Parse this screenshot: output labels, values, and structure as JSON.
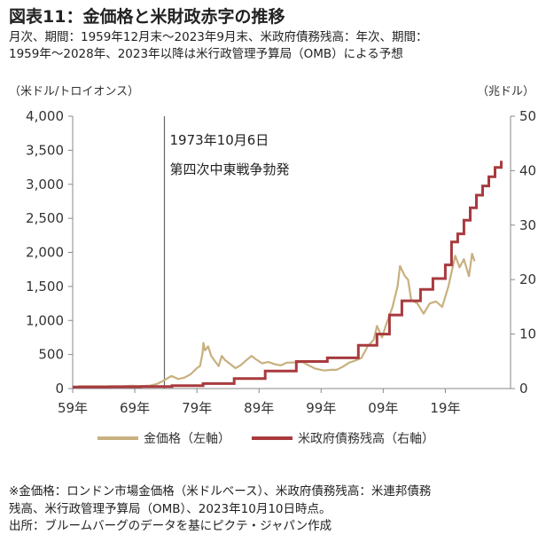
{
  "title": "図表11：金価格と米財政赤字の推移",
  "subtitle": [
    "月次、期間：1959年12月末～2023年9月末、米政府債務残高：年次、期間：",
    "1959年～2028年、2023年以降は米行政管理予算局（OMB）による予想"
  ],
  "left_unit": "（米ドル/トロイオンス）",
  "right_unit": "（兆ドル）",
  "annotation": [
    "1973年10月6日",
    "第四次中東戦争勃発"
  ],
  "footnote": [
    "※金価格：ロンドン市場金価格（米ドルベース）、米政府債務残高：米連邦債務",
    "残高、米行政管理予算局（OMB）、2023年10月10日時点。",
    "出所：ブルームバーグのデータを基にピクテ・ジャパン作成"
  ],
  "legend": {
    "gold": "金価格（左軸）",
    "debt": "米政府債務残高（右軸）"
  },
  "colors": {
    "gold": "#c8b07f",
    "debt": "#a83a3e",
    "axis": "#888888",
    "grid": "#cccccc"
  },
  "chart_data": {
    "type": "line",
    "x_ticks": [
      "59年",
      "69年",
      "79年",
      "89年",
      "99年",
      "09年",
      "19年"
    ],
    "x_tick_years": [
      1959,
      1969,
      1979,
      1989,
      1999,
      2009,
      2019
    ],
    "y_left": {
      "min": 0,
      "max": 4000,
      "ticks": [
        "0",
        "500",
        "1,000",
        "1,500",
        "2,000",
        "2,500",
        "3,000",
        "3,500",
        "4,000"
      ]
    },
    "y_right": {
      "min": 0,
      "max": 50,
      "ticks": [
        "0",
        "10",
        "20",
        "30",
        "40",
        "50"
      ]
    },
    "event_x": 1973.77,
    "series": [
      {
        "name": "金価格（左軸）",
        "axis": "left",
        "points": [
          [
            1959.9,
            35
          ],
          [
            1967.0,
            35
          ],
          [
            1968.5,
            40
          ],
          [
            1970.0,
            36
          ],
          [
            1971.5,
            43
          ],
          [
            1972.5,
            65
          ],
          [
            1973.5,
            110
          ],
          [
            1974.9,
            185
          ],
          [
            1976.0,
            140
          ],
          [
            1977.0,
            160
          ],
          [
            1978.0,
            210
          ],
          [
            1979.0,
            300
          ],
          [
            1979.5,
            330
          ],
          [
            1979.9,
            510
          ],
          [
            1980.05,
            670
          ],
          [
            1980.3,
            560
          ],
          [
            1980.8,
            620
          ],
          [
            1981.3,
            480
          ],
          [
            1982.0,
            390
          ],
          [
            1982.5,
            330
          ],
          [
            1983.0,
            480
          ],
          [
            1983.5,
            420
          ],
          [
            1984.5,
            350
          ],
          [
            1985.2,
            300
          ],
          [
            1986.0,
            340
          ],
          [
            1987.0,
            420
          ],
          [
            1987.8,
            480
          ],
          [
            1988.5,
            430
          ],
          [
            1989.5,
            370
          ],
          [
            1990.5,
            390
          ],
          [
            1991.5,
            360
          ],
          [
            1992.5,
            340
          ],
          [
            1993.5,
            380
          ],
          [
            1995.0,
            385
          ],
          [
            1996.0,
            390
          ],
          [
            1997.0,
            340
          ],
          [
            1998.0,
            295
          ],
          [
            1999.5,
            265
          ],
          [
            2000.5,
            275
          ],
          [
            2001.5,
            275
          ],
          [
            2002.5,
            320
          ],
          [
            2003.5,
            380
          ],
          [
            2004.5,
            410
          ],
          [
            2005.5,
            450
          ],
          [
            2006.5,
            620
          ],
          [
            2007.5,
            720
          ],
          [
            2008.0,
            920
          ],
          [
            2008.8,
            750
          ],
          [
            2009.5,
            950
          ],
          [
            2010.5,
            1200
          ],
          [
            2011.3,
            1500
          ],
          [
            2011.7,
            1800
          ],
          [
            2012.5,
            1650
          ],
          [
            2013.0,
            1600
          ],
          [
            2013.5,
            1300
          ],
          [
            2014.5,
            1250
          ],
          [
            2015.5,
            1100
          ],
          [
            2016.5,
            1250
          ],
          [
            2017.5,
            1280
          ],
          [
            2018.5,
            1200
          ],
          [
            2019.5,
            1500
          ],
          [
            2020.6,
            1950
          ],
          [
            2021.3,
            1780
          ],
          [
            2022.0,
            1900
          ],
          [
            2022.8,
            1650
          ],
          [
            2023.3,
            1980
          ],
          [
            2023.7,
            1870
          ]
        ]
      },
      {
        "name": "米政府債務残高（右軸）",
        "axis": "right",
        "points": [
          [
            1959,
            0.29
          ],
          [
            1965,
            0.32
          ],
          [
            1970,
            0.37
          ],
          [
            1975,
            0.54
          ],
          [
            1980,
            0.91
          ],
          [
            1985,
            1.82
          ],
          [
            1990,
            3.21
          ],
          [
            1995,
            4.97
          ],
          [
            2000,
            5.63
          ],
          [
            2005,
            7.93
          ],
          [
            2008,
            10.0
          ],
          [
            2010,
            13.5
          ],
          [
            2012,
            16.1
          ],
          [
            2015,
            18.2
          ],
          [
            2017,
            20.2
          ],
          [
            2019,
            22.7
          ],
          [
            2020,
            26.9
          ],
          [
            2021,
            28.4
          ],
          [
            2022,
            30.9
          ],
          [
            2023,
            33.2
          ],
          [
            2024,
            35.5
          ],
          [
            2025,
            37.2
          ],
          [
            2026,
            38.9
          ],
          [
            2027,
            40.6
          ],
          [
            2028,
            41.8
          ]
        ]
      }
    ]
  }
}
